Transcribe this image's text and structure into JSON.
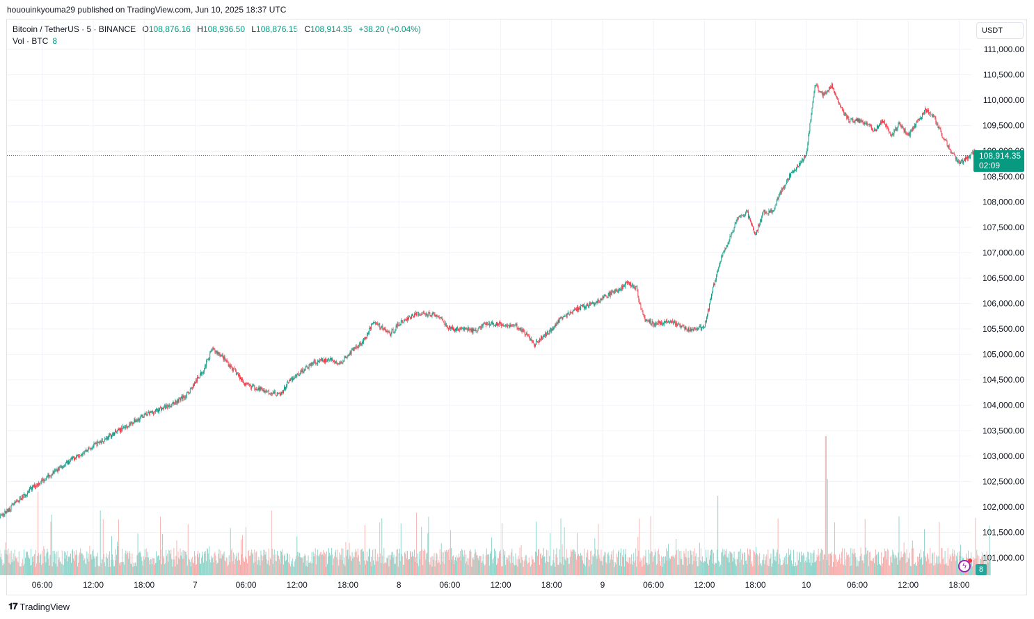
{
  "publisher": "hououinkyouma29 published on TradingView.com, Jun 10, 2025 18:37 UTC",
  "legend": {
    "symbol": "Bitcoin / TetherUS · 5 · BINANCE",
    "open_label": "O",
    "open": "108,876.16",
    "high_label": "H",
    "high": "108,936.50",
    "low_label": "L",
    "low": "108,876.15",
    "close_label": "C",
    "close": "108,914.35",
    "change": "+38.20 (+0.04%)",
    "volume_label": "Vol · BTC",
    "volume": "8"
  },
  "currency": "USDT",
  "last_price": "108,914.35",
  "countdown": "02:09",
  "brand": "TradingView",
  "colors": {
    "up": "#089981",
    "down": "#f23645",
    "vol_up": "#7fcfc4",
    "vol_down": "#f7a9a7",
    "grid": "#f0f3fa"
  },
  "chart_data": {
    "type": "candlestick",
    "symbol": "BTCUSDT",
    "interval": "5m",
    "ylim": [
      100700,
      111300
    ],
    "y_ticks": [
      "111,000.00",
      "110,500.00",
      "110,000.00",
      "109,500.00",
      "109,000.00",
      "108,500.00",
      "108,000.00",
      "107,500.00",
      "107,000.00",
      "106,500.00",
      "106,000.00",
      "105,500.00",
      "105,000.00",
      "104,500.00",
      "104,000.00",
      "103,500.00",
      "103,000.00",
      "102,500.00",
      "102,000.00",
      "101,500.00",
      "101,000.00"
    ],
    "y_tick_values": [
      111000,
      110500,
      110000,
      109500,
      109000,
      108500,
      108000,
      107500,
      107000,
      106500,
      106000,
      105500,
      105000,
      104500,
      104000,
      103500,
      103000,
      102500,
      102000,
      101500,
      101000
    ],
    "x_ticks": [
      "06:00",
      "12:00",
      "18:00",
      "7",
      "06:00",
      "12:00",
      "18:00",
      "8",
      "06:00",
      "12:00",
      "18:00",
      "9",
      "06:00",
      "12:00",
      "18:00",
      "10",
      "06:00",
      "12:00",
      "18:00"
    ],
    "x_start": "Jun 6 02:00",
    "x_end": "Jun 10 18:35",
    "price_path": [
      [
        0,
        101650
      ],
      [
        5,
        102400
      ],
      [
        10,
        103000
      ],
      [
        14,
        103400
      ],
      [
        18,
        103800
      ],
      [
        21,
        104000
      ],
      [
        23,
        104200
      ],
      [
        25,
        104700
      ],
      [
        26,
        105100
      ],
      [
        27,
        105000
      ],
      [
        28,
        104800
      ],
      [
        29,
        104600
      ],
      [
        30,
        104400
      ],
      [
        31,
        104350
      ],
      [
        32,
        104300
      ],
      [
        33,
        104250
      ],
      [
        34,
        104200
      ],
      [
        35,
        104450
      ],
      [
        36,
        104600
      ],
      [
        38,
        104850
      ],
      [
        40,
        104900
      ],
      [
        41,
        104800
      ],
      [
        42,
        105000
      ],
      [
        44,
        105300
      ],
      [
        45,
        105650
      ],
      [
        47,
        105400
      ],
      [
        48,
        105600
      ],
      [
        50,
        105800
      ],
      [
        52,
        105800
      ],
      [
        53,
        105700
      ],
      [
        54,
        105500
      ],
      [
        56,
        105500
      ],
      [
        57,
        105450
      ],
      [
        58,
        105600
      ],
      [
        60,
        105600
      ],
      [
        62,
        105550
      ],
      [
        63,
        105400
      ],
      [
        64,
        105200
      ],
      [
        66,
        105500
      ],
      [
        67,
        105700
      ],
      [
        69,
        105900
      ],
      [
        71,
        106000
      ],
      [
        73,
        106200
      ],
      [
        74,
        106300
      ],
      [
        75,
        106400
      ],
      [
        76,
        106300
      ],
      [
        76.5,
        105900
      ],
      [
        77,
        105700
      ],
      [
        78,
        105600
      ],
      [
        80,
        105650
      ],
      [
        82,
        105500
      ],
      [
        83,
        105500
      ],
      [
        84,
        105550
      ],
      [
        84.5,
        105900
      ],
      [
        85,
        106300
      ],
      [
        86,
        106900
      ],
      [
        87,
        107300
      ],
      [
        88,
        107700
      ],
      [
        89,
        107800
      ],
      [
        90,
        107350
      ],
      [
        91,
        107800
      ],
      [
        92,
        107800
      ],
      [
        93,
        108200
      ],
      [
        94,
        108500
      ],
      [
        95,
        108700
      ],
      [
        96,
        108950
      ],
      [
        97,
        110300
      ],
      [
        98,
        110100
      ],
      [
        99,
        110300
      ],
      [
        100,
        109900
      ],
      [
        101,
        109600
      ],
      [
        102,
        109600
      ],
      [
        103,
        109550
      ],
      [
        104,
        109400
      ],
      [
        105,
        109600
      ],
      [
        106,
        109300
      ],
      [
        107,
        109550
      ],
      [
        108,
        109300
      ],
      [
        109,
        109550
      ],
      [
        110,
        109800
      ],
      [
        111,
        109700
      ],
      [
        112,
        109300
      ],
      [
        113,
        109000
      ],
      [
        114,
        108750
      ],
      [
        116,
        109000
      ],
      [
        117,
        108900
      ],
      [
        117.7,
        108914
      ]
    ],
    "volume_spikes": [
      [
        3.5,
        2000
      ],
      [
        10.8,
        1550
      ],
      [
        17.9,
        1400
      ],
      [
        31,
        1550
      ],
      [
        48.1,
        1500
      ],
      [
        83.6,
        1900
      ],
      [
        96.3,
        3400
      ],
      [
        96.5,
        2300
      ]
    ]
  }
}
